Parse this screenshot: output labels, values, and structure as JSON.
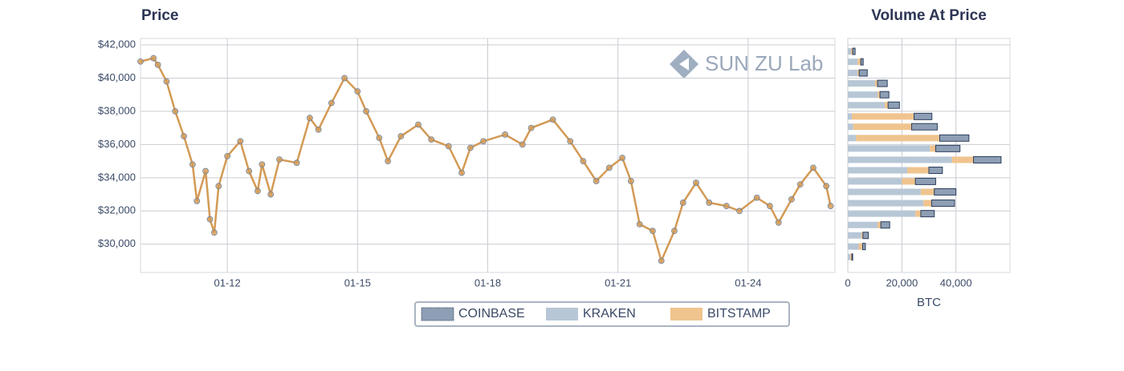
{
  "watermark": "SUN ZU Lab",
  "chart_data": [
    {
      "type": "scatter",
      "title": "Price",
      "color": "#d39a55",
      "grid": true,
      "x": [
        10.0,
        10.3,
        10.4,
        10.6,
        10.8,
        11.0,
        11.2,
        11.3,
        11.5,
        11.6,
        11.7,
        11.8,
        12.0,
        12.3,
        12.5,
        12.7,
        12.8,
        13.0,
        13.2,
        13.6,
        13.9,
        14.1,
        14.4,
        14.7,
        15.0,
        15.2,
        15.5,
        15.7,
        16.0,
        16.4,
        16.7,
        17.1,
        17.4,
        17.6,
        17.9,
        18.4,
        18.8,
        19.0,
        19.5,
        19.9,
        20.2,
        20.5,
        20.8,
        21.1,
        21.3,
        21.5,
        21.8,
        22.0,
        22.3,
        22.5,
        22.8,
        23.1,
        23.5,
        23.8,
        24.2,
        24.5,
        24.7,
        25.0,
        25.2,
        25.5,
        25.8,
        25.9
      ],
      "values": [
        41000,
        41200,
        40800,
        39800,
        38000,
        36500,
        34800,
        32600,
        34400,
        31500,
        30700,
        33500,
        35300,
        36200,
        34400,
        33200,
        34800,
        33000,
        35100,
        34900,
        37600,
        36900,
        38500,
        40000,
        39200,
        38000,
        36400,
        35000,
        36500,
        37200,
        36300,
        35900,
        34300,
        35800,
        36200,
        36600,
        36000,
        37000,
        37500,
        36200,
        35000,
        33800,
        34600,
        35200,
        33800,
        31200,
        30800,
        29000,
        30800,
        32500,
        33700,
        32500,
        32300,
        32000,
        32800,
        32300,
        31300,
        32700,
        33600,
        34600,
        33500,
        32300
      ],
      "xlim": [
        10,
        26
      ],
      "xticks": [
        {
          "value": 12,
          "label": "01-12"
        },
        {
          "value": 15,
          "label": "01-15"
        },
        {
          "value": 18,
          "label": "01-18"
        },
        {
          "value": 21,
          "label": "01-21"
        },
        {
          "value": 24,
          "label": "01-24"
        }
      ],
      "ylim": [
        28300,
        42000
      ],
      "yticks": [
        {
          "value": 30000,
          "label": "$30,000"
        },
        {
          "value": 32000,
          "label": "$32,000"
        },
        {
          "value": 34000,
          "label": "$34,000"
        },
        {
          "value": 36000,
          "label": "$36,000"
        },
        {
          "value": 38000,
          "label": "$38,000"
        },
        {
          "value": 40000,
          "label": "$40,000"
        },
        {
          "value": 42000,
          "label": "$42,000"
        }
      ]
    },
    {
      "type": "hbar-stacked",
      "title": "Volume At Price",
      "xlabel": "BTC",
      "y": [
        41610,
        40980,
        40310,
        39680,
        39000,
        38370,
        37690,
        37070,
        36390,
        35760,
        35080,
        34450,
        33780,
        33150,
        32470,
        31840,
        31160,
        30530,
        29860,
        29230
      ],
      "series": [
        {
          "name": "KRAKEN",
          "color": "#b7c7d6",
          "values": [
            1200,
            3600,
            3600,
            10100,
            11000,
            13700,
            1500,
            2000,
            3000,
            30400,
            38500,
            22000,
            20000,
            27000,
            28000,
            25000,
            11000,
            5000,
            4000,
            900
          ]
        },
        {
          "name": "BITSTAMP",
          "color": "#f0c48e",
          "values": [
            600,
            1200,
            600,
            900,
            900,
            1200,
            23000,
            21600,
            31000,
            2100,
            8000,
            8000,
            5000,
            5000,
            3000,
            2000,
            1200,
            600,
            1500,
            600
          ]
        },
        {
          "name": "COINBASE",
          "color": "#8e9fb5",
          "values": [
            900,
            900,
            3000,
            3600,
            3300,
            4200,
            6600,
            9500,
            10800,
            9000,
            10200,
            5000,
            7500,
            8000,
            8500,
            5000,
            3300,
            2000,
            1000,
            300
          ]
        }
      ],
      "legend_order": [
        2,
        0,
        1
      ],
      "xlim": [
        0,
        60000
      ],
      "xticks": [
        0,
        {
          "value": 20000,
          "label": "20,000"
        },
        {
          "value": 40000,
          "label": "40,000"
        }
      ],
      "ylim": [
        28300,
        42000
      ]
    }
  ]
}
